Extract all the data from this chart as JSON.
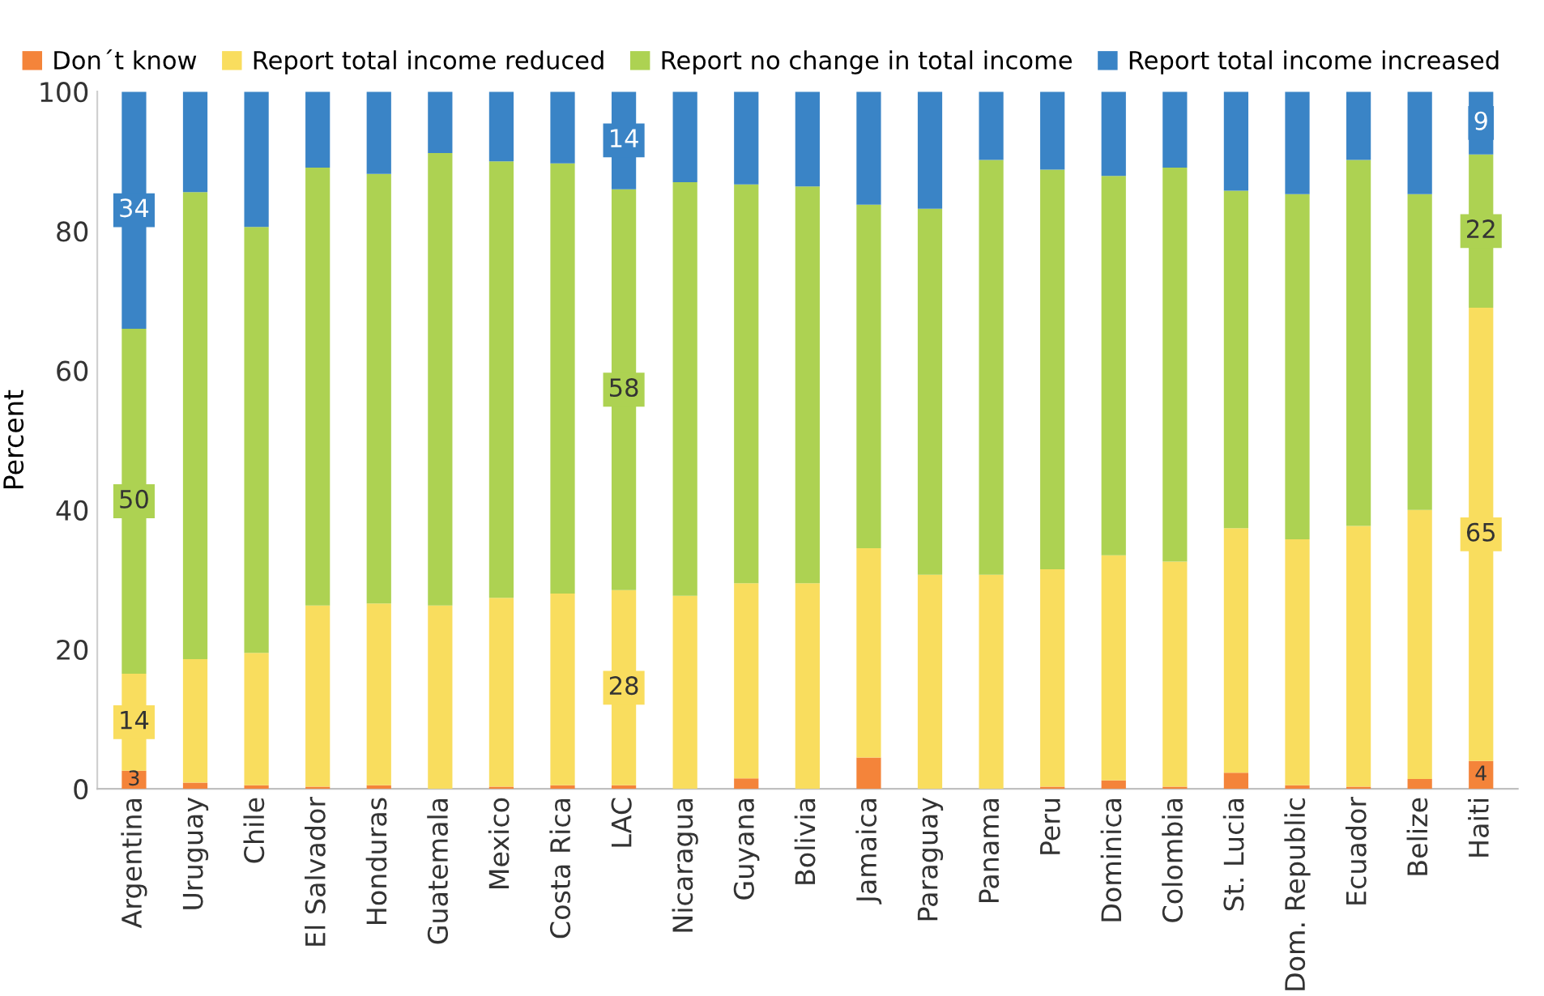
{
  "chart_data": {
    "type": "bar",
    "stacked": true,
    "ylabel": "Percent",
    "categories": [
      "Argentina",
      "Uruguay",
      "Chile",
      "El Salvador",
      "Honduras",
      "Guatemala",
      "Mexico",
      "Costa Rica",
      "LAC",
      "Nicaragua",
      "Guyana",
      "Bolivia",
      "Jamaica",
      "Paraguay",
      "Panama",
      "Peru",
      "Dominica",
      "Colombia",
      "St. Lucia",
      "Dom. Republic",
      "Ecuador",
      "Belize",
      "Haiti"
    ],
    "series": [
      {
        "name": "Don´t know",
        "color": "#f4843a",
        "values": [
          2.6,
          0.9,
          0.5,
          0.3,
          0.5,
          0,
          0.3,
          0.5,
          0.5,
          0,
          1.5,
          0,
          4.5,
          0,
          0,
          0.3,
          1.2,
          0.3,
          2.3,
          0.5,
          0.3,
          1.4,
          4
        ],
        "value_labels": [
          "3",
          null,
          null,
          null,
          null,
          null,
          null,
          null,
          null,
          null,
          null,
          null,
          null,
          null,
          null,
          null,
          null,
          null,
          null,
          null,
          null,
          null,
          "4"
        ]
      },
      {
        "name": "Report total income reduced",
        "color": "#f9dd5e",
        "values": [
          13.9,
          17.7,
          19,
          26,
          26.1,
          26.3,
          27.1,
          27.5,
          28,
          27.7,
          28,
          29.5,
          30,
          30.7,
          30.7,
          31.2,
          32.3,
          32.3,
          35.1,
          35.3,
          37.4,
          38.6,
          65
        ],
        "value_labels": [
          "14",
          null,
          null,
          null,
          null,
          null,
          null,
          null,
          "28",
          null,
          null,
          null,
          null,
          null,
          null,
          null,
          null,
          null,
          null,
          null,
          null,
          null,
          "65"
        ]
      },
      {
        "name": "Report no change in total income",
        "color": "#add252",
        "values": [
          49.5,
          67,
          61.1,
          62.8,
          61.6,
          64.9,
          62.6,
          61.7,
          57.5,
          59.3,
          57.2,
          56.9,
          49.3,
          52.5,
          59.5,
          57.3,
          54.4,
          56.5,
          48.4,
          49.5,
          52.5,
          45.3,
          22
        ],
        "value_labels": [
          "50",
          null,
          null,
          null,
          null,
          null,
          null,
          null,
          "58",
          null,
          null,
          null,
          null,
          null,
          null,
          null,
          null,
          null,
          null,
          null,
          null,
          null,
          "22"
        ]
      },
      {
        "name": "Report total income increased",
        "color": "#3a84c6",
        "values": [
          34,
          14.4,
          19.4,
          10.9,
          11.8,
          8.8,
          10,
          10.3,
          14,
          13,
          13.3,
          13.6,
          16.2,
          16.8,
          9.8,
          11.2,
          12.1,
          10.9,
          14.2,
          14.7,
          9.8,
          14.7,
          9
        ],
        "value_labels": [
          "34",
          null,
          null,
          null,
          null,
          null,
          null,
          null,
          "14",
          null,
          null,
          null,
          null,
          null,
          null,
          null,
          null,
          null,
          null,
          null,
          null,
          null,
          "9"
        ]
      }
    ],
    "ylim": [
      0,
      100
    ],
    "yticks": [
      0,
      20,
      40,
      60,
      80,
      100
    ],
    "grid": false,
    "legend": "top right"
  }
}
